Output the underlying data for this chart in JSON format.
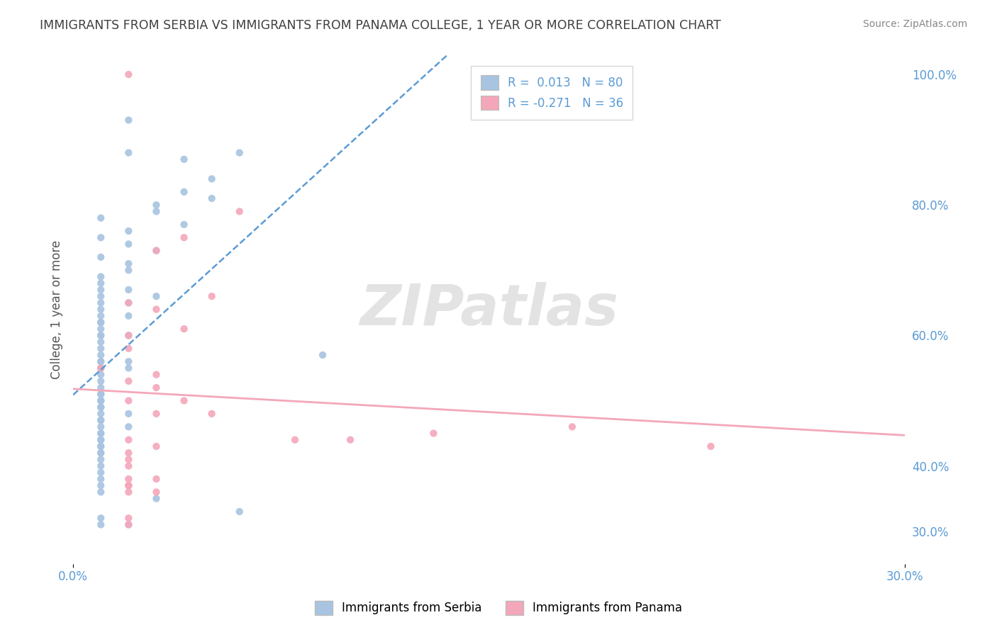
{
  "title": "IMMIGRANTS FROM SERBIA VS IMMIGRANTS FROM PANAMA COLLEGE, 1 YEAR OR MORE CORRELATION CHART",
  "source": "Source: ZipAtlas.com",
  "ylabel": "College, 1 year or more",
  "xlim": [
    0.0,
    0.3
  ],
  "ylim": [
    0.25,
    1.03
  ],
  "ytick_positions_right": [
    1.0,
    0.8,
    0.6,
    0.4,
    0.3
  ],
  "ytick_labels_right": [
    "100.0%",
    "80.0%",
    "60.0%",
    "40.0%",
    "30.0%"
  ],
  "serbia_R": 0.013,
  "serbia_N": 80,
  "panama_R": -0.271,
  "panama_N": 36,
  "serbia_color": "#a8c4e0",
  "panama_color": "#f4a7b9",
  "serbia_line_color": "#5b9bd5",
  "panama_line_color": "#f4a7b9",
  "legend_serbia_label": "Immigrants from Serbia",
  "legend_panama_label": "Immigrants from Panama",
  "watermark": "ZIPatlas",
  "serbia_x": [
    0.02,
    0.04,
    0.05,
    0.06,
    0.02,
    0.03,
    0.04,
    0.05,
    0.01,
    0.02,
    0.03,
    0.04,
    0.01,
    0.02,
    0.03,
    0.01,
    0.02,
    0.02,
    0.01,
    0.01,
    0.01,
    0.02,
    0.03,
    0.01,
    0.02,
    0.01,
    0.01,
    0.02,
    0.01,
    0.01,
    0.01,
    0.01,
    0.01,
    0.02,
    0.01,
    0.01,
    0.01,
    0.01,
    0.01,
    0.02,
    0.01,
    0.01,
    0.01,
    0.02,
    0.01,
    0.01,
    0.01,
    0.01,
    0.01,
    0.01,
    0.01,
    0.01,
    0.01,
    0.01,
    0.02,
    0.01,
    0.01,
    0.01,
    0.01,
    0.02,
    0.01,
    0.01,
    0.01,
    0.09,
    0.01,
    0.01,
    0.01,
    0.01,
    0.01,
    0.01,
    0.01,
    0.01,
    0.01,
    0.01,
    0.01,
    0.03,
    0.06,
    0.01,
    0.02,
    0.01
  ],
  "serbia_y": [
    0.93,
    0.87,
    0.81,
    0.88,
    0.88,
    0.79,
    0.82,
    0.84,
    0.78,
    0.76,
    0.8,
    0.77,
    0.75,
    0.74,
    0.73,
    0.72,
    0.71,
    0.7,
    0.69,
    0.68,
    0.67,
    0.67,
    0.66,
    0.66,
    0.65,
    0.65,
    0.64,
    0.63,
    0.63,
    0.62,
    0.62,
    0.61,
    0.6,
    0.6,
    0.6,
    0.59,
    0.58,
    0.57,
    0.56,
    0.56,
    0.56,
    0.55,
    0.55,
    0.55,
    0.54,
    0.53,
    0.52,
    0.51,
    0.51,
    0.5,
    0.5,
    0.5,
    0.49,
    0.49,
    0.48,
    0.48,
    0.47,
    0.47,
    0.46,
    0.46,
    0.45,
    0.45,
    0.44,
    0.57,
    0.44,
    0.43,
    0.43,
    0.42,
    0.42,
    0.41,
    0.4,
    0.39,
    0.38,
    0.37,
    0.36,
    0.35,
    0.33,
    0.32,
    0.31,
    0.31
  ],
  "panama_x": [
    0.02,
    0.06,
    0.04,
    0.03,
    0.05,
    0.02,
    0.03,
    0.04,
    0.02,
    0.02,
    0.03,
    0.03,
    0.04,
    0.05,
    0.08,
    0.1,
    0.13,
    0.18,
    0.23,
    0.02,
    0.02,
    0.02,
    0.03,
    0.02,
    0.02,
    0.01,
    0.02,
    0.02,
    0.03,
    0.02,
    0.03,
    0.02,
    0.02,
    0.03,
    0.02,
    0.02
  ],
  "panama_y": [
    1.0,
    0.79,
    0.75,
    0.73,
    0.66,
    0.65,
    0.64,
    0.61,
    0.6,
    0.58,
    0.54,
    0.52,
    0.5,
    0.48,
    0.44,
    0.44,
    0.45,
    0.46,
    0.43,
    0.42,
    0.41,
    0.4,
    0.38,
    0.37,
    0.36,
    0.55,
    0.53,
    0.5,
    0.48,
    0.44,
    0.43,
    0.38,
    0.37,
    0.36,
    0.32,
    0.31
  ]
}
